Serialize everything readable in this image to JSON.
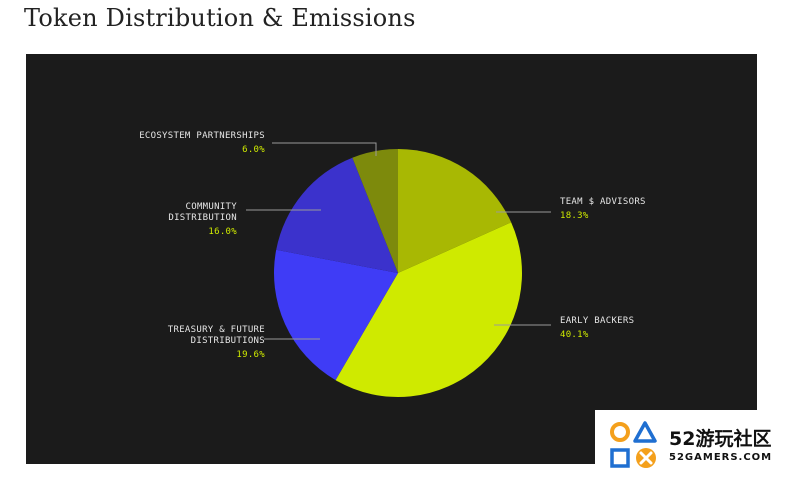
{
  "page": {
    "title": "Token Distribution & Emissions"
  },
  "chart_data": {
    "type": "pie",
    "title": "Token Distribution & Emissions",
    "start": "top, clockwise",
    "slices": [
      {
        "key": "team",
        "label_lines": [
          "TEAM $ ADVISORS"
        ],
        "pct_label": "18.3%",
        "value": 18.3,
        "color": "#a8b803"
      },
      {
        "key": "early",
        "label_lines": [
          "EARLY BACKERS"
        ],
        "pct_label": "40.1%",
        "value": 40.1,
        "color": "#cfea00"
      },
      {
        "key": "treasury",
        "label_lines": [
          "TREASURY & FUTURE",
          "DISTRIBUTIONS"
        ],
        "pct_label": "19.6%",
        "value": 19.6,
        "color": "#3f3cf6"
      },
      {
        "key": "community",
        "label_lines": [
          "COMMUNITY",
          "DISTRIBUTION"
        ],
        "pct_label": "16.0%",
        "value": 16.0,
        "color": "#3b32cc"
      },
      {
        "key": "ecosystem",
        "label_lines": [
          "ECOSYSTEM PARTNERSHIPS"
        ],
        "pct_label": "6.0%",
        "value": 6.0,
        "color": "#7d8a0c"
      }
    ],
    "label_color": "#e6e6e6",
    "pct_color": "#cfea00",
    "leader_color": "#9a9a9a"
  },
  "watermark": {
    "cn": "52游玩社区",
    "en": "52GAMERS.COM",
    "colors": {
      "orange": "#f4a01c",
      "blue": "#1f6fd1"
    }
  }
}
